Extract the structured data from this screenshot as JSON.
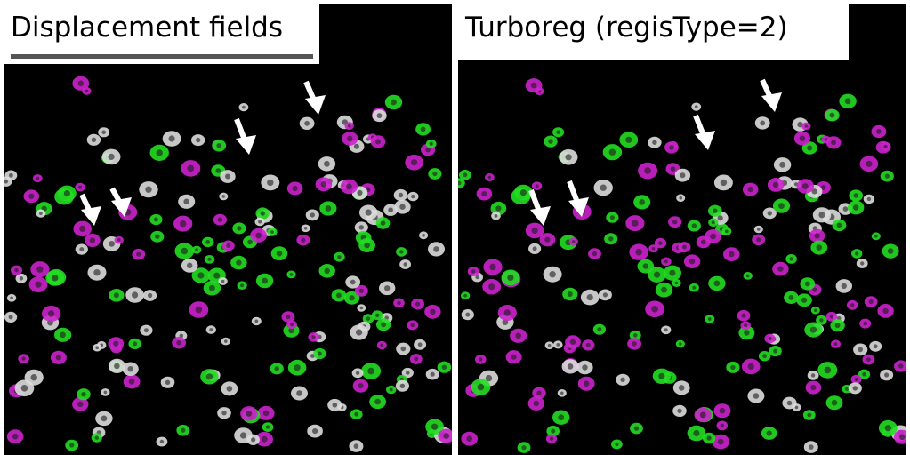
{
  "panels": [
    {
      "title": "Displacement fields",
      "selected": true
    },
    {
      "title": "Turboreg (regisType=2)",
      "selected": false
    }
  ],
  "colors": {
    "green": "#22dd22",
    "magenta": "#cc22cc",
    "overlap": "#dddddd",
    "arrow": "#ffffff",
    "background": "#000000"
  },
  "marker_icon": "arrow-down-icon"
}
